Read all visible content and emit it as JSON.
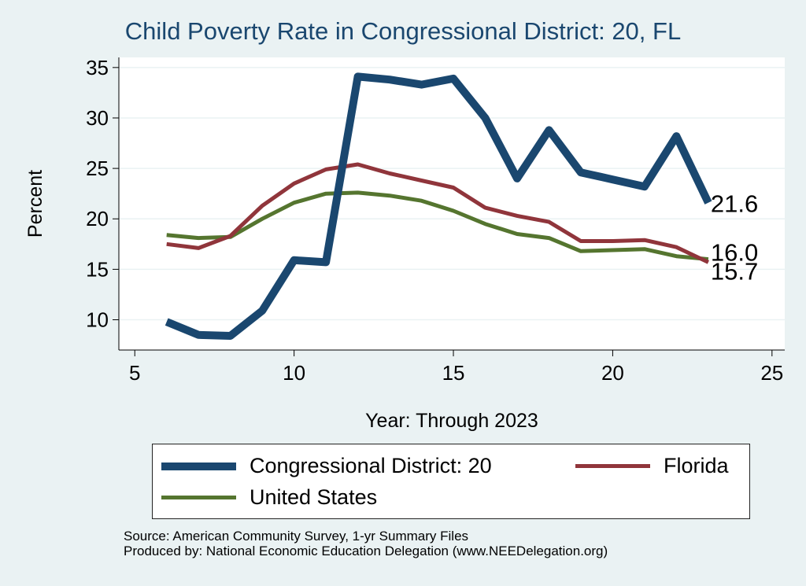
{
  "chart_data": {
    "type": "line",
    "title": "Child Poverty Rate in Congressional District:  20, FL",
    "xlabel": "Year: Through 2023",
    "ylabel": "Percent",
    "xlim": [
      4.5,
      25.4
    ],
    "ylim": [
      7.0,
      36.0
    ],
    "xticks": [
      5,
      10,
      15,
      20,
      25
    ],
    "yticks": [
      10,
      15,
      20,
      25,
      30,
      35
    ],
    "grid": true,
    "legend_position": "bottom",
    "series": [
      {
        "name": "Congressional District:  20",
        "color": "#1a476f",
        "x": [
          6,
          7,
          8,
          9,
          10,
          11,
          12,
          13,
          14,
          15,
          16,
          17,
          18,
          19,
          20,
          21,
          22,
          23
        ],
        "values": [
          9.8,
          8.5,
          8.4,
          10.9,
          15.9,
          15.7,
          34.1,
          33.8,
          33.3,
          33.9,
          30.0,
          24.0,
          28.8,
          24.6,
          23.9,
          23.2,
          28.2,
          21.6
        ],
        "end_label": "21.6"
      },
      {
        "name": "Florida",
        "color": "#90353b",
        "x": [
          6,
          7,
          8,
          9,
          10,
          11,
          12,
          13,
          14,
          15,
          16,
          17,
          18,
          19,
          20,
          21,
          22,
          23
        ],
        "values": [
          17.5,
          17.1,
          18.3,
          21.3,
          23.5,
          24.9,
          25.4,
          24.5,
          23.8,
          23.1,
          21.1,
          20.3,
          19.7,
          17.8,
          17.8,
          17.9,
          17.2,
          15.7
        ],
        "end_label": "15.7"
      },
      {
        "name": "United States",
        "color": "#55752f",
        "x": [
          6,
          7,
          8,
          9,
          10,
          11,
          12,
          13,
          14,
          15,
          16,
          17,
          18,
          19,
          20,
          21,
          22,
          23
        ],
        "values": [
          18.4,
          18.1,
          18.2,
          20.0,
          21.6,
          22.5,
          22.6,
          22.3,
          21.8,
          20.8,
          19.5,
          18.5,
          18.1,
          16.8,
          16.9,
          17.0,
          16.3,
          16.0
        ],
        "end_label": "16.0"
      }
    ]
  },
  "source": {
    "line1": "Source: American Community Survey, 1-yr Summary Files",
    "line2": "Produced by: National Economic Education Delegation (www.NEEDelegation.org)"
  }
}
